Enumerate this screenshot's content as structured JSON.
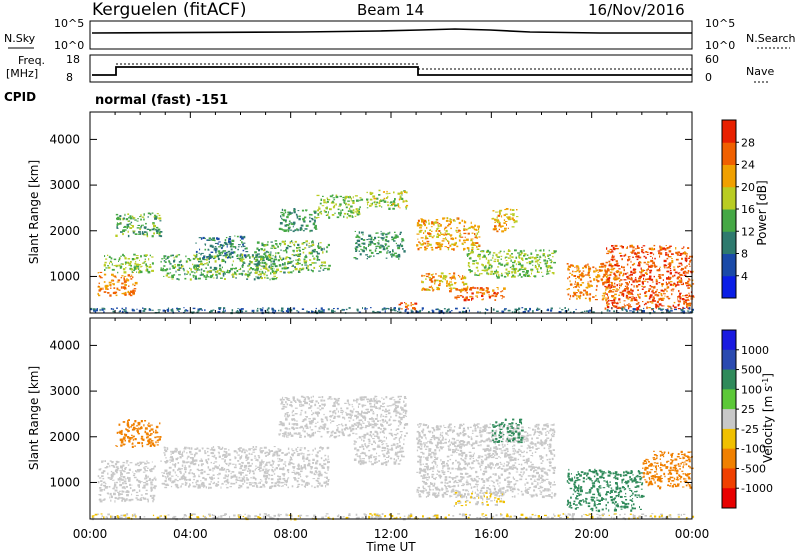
{
  "header": {
    "site": "Kerguelen (fitACF)",
    "beam": "Beam 14",
    "date": "16/Nov/2016"
  },
  "top_panels": {
    "nsky_label": "N.Sky",
    "nsky_ticks": [
      "10^5",
      "10^0"
    ],
    "nsearch_label": "N.Search",
    "freq_label_line1": "Freq.",
    "freq_label_line2": "[MHz]",
    "freq_ticks": [
      "18",
      "8"
    ],
    "nave_ticks": [
      "60",
      "0"
    ],
    "nave_label": "Nave",
    "cpid_label": "CPID",
    "cpid_value": "normal (fast) -151"
  },
  "colors": {
    "power_scale": [
      "#0a1ee6",
      "#1a4aa8",
      "#2e7a6e",
      "#45a845",
      "#b9cc22",
      "#f0a000",
      "#f06000",
      "#e82000"
    ],
    "velocity_scale": [
      "#1a1ae0",
      "#2a4ab0",
      "#2f8a5a",
      "#5cc838",
      "#c8c8c8",
      "#f0c000",
      "#f08000",
      "#f04000",
      "#e80000"
    ]
  },
  "chart_data": [
    {
      "type": "heatmap",
      "panel": "power",
      "xlabel": "",
      "ylabel": "Slant Range [km]",
      "ylim": [
        200,
        4600
      ],
      "yticks": [
        1000,
        2000,
        3000,
        4000
      ],
      "xlim": [
        0,
        24
      ],
      "colorbar_label": "Power [dB]",
      "colorbar_ticks": [
        "4",
        "8",
        "12",
        "16",
        "20",
        "24",
        "28"
      ],
      "colorbar_range": [
        0,
        32
      ],
      "echo_regions": [
        {
          "t0": 0.3,
          "t1": 1.8,
          "r0": 600,
          "r1": 1100,
          "level": 24
        },
        {
          "t0": 0.5,
          "t1": 2.5,
          "r0": 1100,
          "r1": 1500,
          "level": 16
        },
        {
          "t0": 1.0,
          "t1": 2.8,
          "r0": 1900,
          "r1": 2400,
          "level": 14
        },
        {
          "t0": 2.8,
          "t1": 7.5,
          "r0": 950,
          "r1": 1500,
          "level": 14
        },
        {
          "t0": 4.2,
          "t1": 6.2,
          "r0": 1400,
          "r1": 1900,
          "level": 10
        },
        {
          "t0": 6.5,
          "t1": 9.5,
          "r0": 1100,
          "r1": 1800,
          "level": 14
        },
        {
          "t0": 7.5,
          "t1": 9.0,
          "r0": 2000,
          "r1": 2500,
          "level": 12
        },
        {
          "t0": 9.0,
          "t1": 10.8,
          "r0": 2300,
          "r1": 2800,
          "level": 16
        },
        {
          "t0": 10.5,
          "t1": 12.5,
          "r0": 1400,
          "r1": 2000,
          "level": 12
        },
        {
          "t0": 11.0,
          "t1": 12.6,
          "r0": 2500,
          "r1": 2900,
          "level": 18
        },
        {
          "t0": 13.0,
          "t1": 15.5,
          "r0": 1600,
          "r1": 2300,
          "level": 22
        },
        {
          "t0": 13.2,
          "t1": 15.0,
          "r0": 700,
          "r1": 1100,
          "level": 22
        },
        {
          "t0": 14.5,
          "t1": 16.5,
          "r0": 500,
          "r1": 800,
          "level": 26
        },
        {
          "t0": 15.0,
          "t1": 18.5,
          "r0": 1000,
          "r1": 1600,
          "level": 16
        },
        {
          "t0": 12.3,
          "t1": 13.0,
          "r0": 300,
          "r1": 450,
          "level": 26
        },
        {
          "t0": 16.0,
          "t1": 17.0,
          "r0": 2000,
          "r1": 2500,
          "level": 22
        },
        {
          "t0": 19.0,
          "t1": 21.0,
          "r0": 500,
          "r1": 1300,
          "level": 24
        },
        {
          "t0": 20.5,
          "t1": 24.0,
          "r0": 300,
          "r1": 1700,
          "level": 27
        },
        {
          "t0": 0.0,
          "t1": 24.0,
          "r0": 220,
          "r1": 330,
          "level": 8
        }
      ]
    },
    {
      "type": "heatmap",
      "panel": "velocity",
      "xlabel": "Time UT",
      "ylabel": "Slant Range [km]",
      "ylim": [
        200,
        4600
      ],
      "yticks": [
        1000,
        2000,
        3000,
        4000
      ],
      "xlim": [
        0,
        24
      ],
      "xtick_labels": [
        "00:00",
        "04:00",
        "08:00",
        "12:00",
        "16:00",
        "20:00",
        "00:00"
      ],
      "colorbar_label": "Velocity [m s^-1]",
      "colorbar_ticks": [
        "1000",
        "500",
        "100",
        "25",
        "-25",
        "-100",
        "-500",
        "-1000"
      ],
      "echo_regions": [
        {
          "t0": 0.3,
          "t1": 2.6,
          "r0": 600,
          "r1": 1500,
          "v": 0
        },
        {
          "t0": 1.0,
          "t1": 2.8,
          "r0": 1800,
          "r1": 2400,
          "v": -300
        },
        {
          "t0": 2.8,
          "t1": 9.5,
          "r0": 900,
          "r1": 1800,
          "v": 0
        },
        {
          "t0": 7.5,
          "t1": 12.6,
          "r0": 2000,
          "r1": 2900,
          "v": 0
        },
        {
          "t0": 10.5,
          "t1": 12.5,
          "r0": 1400,
          "r1": 2000,
          "v": 0
        },
        {
          "t0": 13.0,
          "t1": 18.5,
          "r0": 700,
          "r1": 2300,
          "v": 0
        },
        {
          "t0": 14.5,
          "t1": 16.5,
          "r0": 500,
          "r1": 800,
          "v": -20
        },
        {
          "t0": 16.0,
          "t1": 17.2,
          "r0": 1900,
          "r1": 2400,
          "v": 150
        },
        {
          "t0": 19.0,
          "t1": 22.0,
          "r0": 400,
          "r1": 1300,
          "v": 150
        },
        {
          "t0": 22.0,
          "t1": 24.0,
          "r0": 900,
          "r1": 1700,
          "v": -300
        },
        {
          "t0": 0.0,
          "t1": 24.0,
          "r0": 220,
          "r1": 330,
          "v": -20
        }
      ]
    }
  ]
}
